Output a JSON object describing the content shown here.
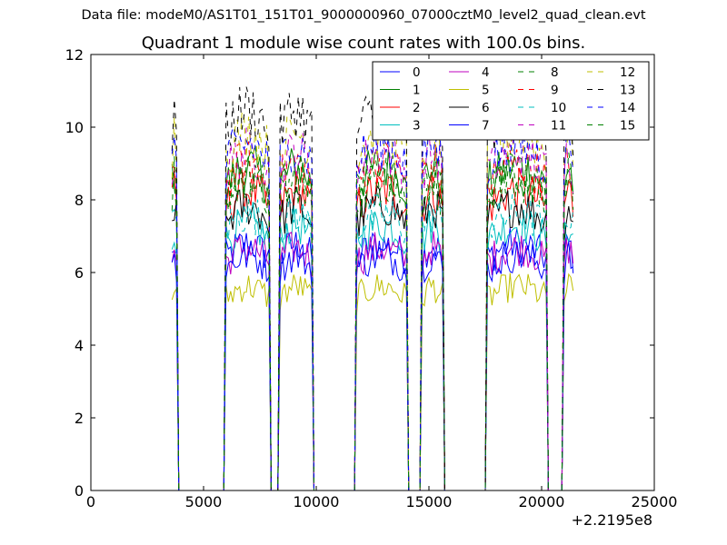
{
  "chart_data": {
    "type": "line",
    "suptitle": "Data file: modeM0/AS1T01_151T01_9000000960_07000cztM0_level2_quad_clean.evt",
    "title": "Quadrant 1 module wise count rates with 100.0s bins.",
    "xlabel": "",
    "ylabel": "",
    "x_offset_label": "+2.2195e8",
    "xlim": [
      0,
      25000
    ],
    "ylim": [
      0,
      12
    ],
    "xticks": [
      0,
      5000,
      10000,
      15000,
      20000,
      25000
    ],
    "xtick_labels": [
      "0",
      "5000",
      "10000",
      "15000",
      "20000",
      "25000"
    ],
    "yticks": [
      0,
      2,
      4,
      6,
      8,
      10,
      12
    ],
    "ytick_labels": [
      "0",
      "2",
      "4",
      "6",
      "8",
      "10",
      "12"
    ],
    "grid": false,
    "legend_placement": "top-right",
    "legend_columns": 4,
    "x_range_description": "Light curves begin near x=3600 and end near x=21400; rates drop to 0 during data gaps.",
    "active_segments": [
      [
        3600,
        3800
      ],
      [
        6000,
        7900
      ],
      [
        8400,
        9800
      ],
      [
        11800,
        14000
      ],
      [
        14700,
        15600
      ],
      [
        17600,
        20200
      ],
      [
        21000,
        21400
      ]
    ],
    "series": [
      {
        "name": "0",
        "color": "#0000ff",
        "dash": "solid",
        "level": 6.4
      },
      {
        "name": "1",
        "color": "#008000",
        "dash": "solid",
        "level": 8.4
      },
      {
        "name": "2",
        "color": "#ff0000",
        "dash": "solid",
        "level": 7.8
      },
      {
        "name": "3",
        "color": "#00bfbf",
        "dash": "solid",
        "level": 6.9
      },
      {
        "name": "4",
        "color": "#bf00bf",
        "dash": "solid",
        "level": 6.3
      },
      {
        "name": "5",
        "color": "#bfbf00",
        "dash": "solid",
        "level": 5.3
      },
      {
        "name": "6",
        "color": "#000000",
        "dash": "solid",
        "level": 7.4
      },
      {
        "name": "7",
        "color": "#0000ff",
        "dash": "solid",
        "level": 6.1
      },
      {
        "name": "8",
        "color": "#008000",
        "dash": "dashed",
        "level": 8.0
      },
      {
        "name": "9",
        "color": "#ff0000",
        "dash": "dashed",
        "level": 8.5
      },
      {
        "name": "10",
        "color": "#00bfbf",
        "dash": "dashed",
        "level": 7.2
      },
      {
        "name": "11",
        "color": "#bf00bf",
        "dash": "dashed",
        "level": 8.8
      },
      {
        "name": "12",
        "color": "#bfbf00",
        "dash": "dashed",
        "level": 9.3
      },
      {
        "name": "13",
        "color": "#000000",
        "dash": "dashed",
        "level": 9.9
      },
      {
        "name": "14",
        "color": "#0000ff",
        "dash": "dashed",
        "level": 9.0
      },
      {
        "name": "15",
        "color": "#008000",
        "dash": "dashed",
        "level": 8.2
      }
    ]
  }
}
